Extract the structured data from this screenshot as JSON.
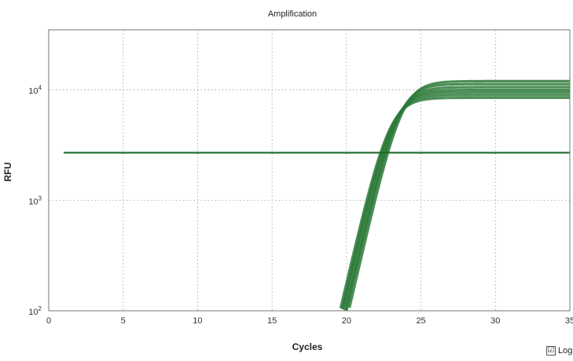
{
  "chart_data": {
    "type": "line",
    "title": "Amplification",
    "xlabel": "Cycles",
    "ylabel": "RFU",
    "xlim": [
      0,
      35
    ],
    "ylim": [
      100,
      35000
    ],
    "yscale": "log",
    "grid": true,
    "x_ticks": [
      0,
      5,
      10,
      15,
      20,
      25,
      30,
      35
    ],
    "y_ticks": [
      {
        "value": 100,
        "base": "10",
        "exp": "2"
      },
      {
        "value": 1000,
        "base": "10",
        "exp": "3"
      },
      {
        "value": 10000,
        "base": "10",
        "exp": "4"
      }
    ],
    "threshold": {
      "value": 2700,
      "x_start": 1,
      "x_end": 35,
      "color": "#1e6b2b"
    },
    "curve_color": "#2d7a3a",
    "series": [
      {
        "plateau": 12000,
        "midpoint": 23.7
      },
      {
        "plateau": 11300,
        "midpoint": 23.5
      },
      {
        "plateau": 10600,
        "midpoint": 23.4
      },
      {
        "plateau": 10000,
        "midpoint": 23.25
      },
      {
        "plateau": 9500,
        "midpoint": 23.1
      },
      {
        "plateau": 9000,
        "midpoint": 23.0
      },
      {
        "plateau": 8500,
        "midpoint": 22.85
      }
    ],
    "series_steepness": 1.35
  },
  "controls": {
    "log_label": "Log",
    "log_checked": "☑"
  }
}
